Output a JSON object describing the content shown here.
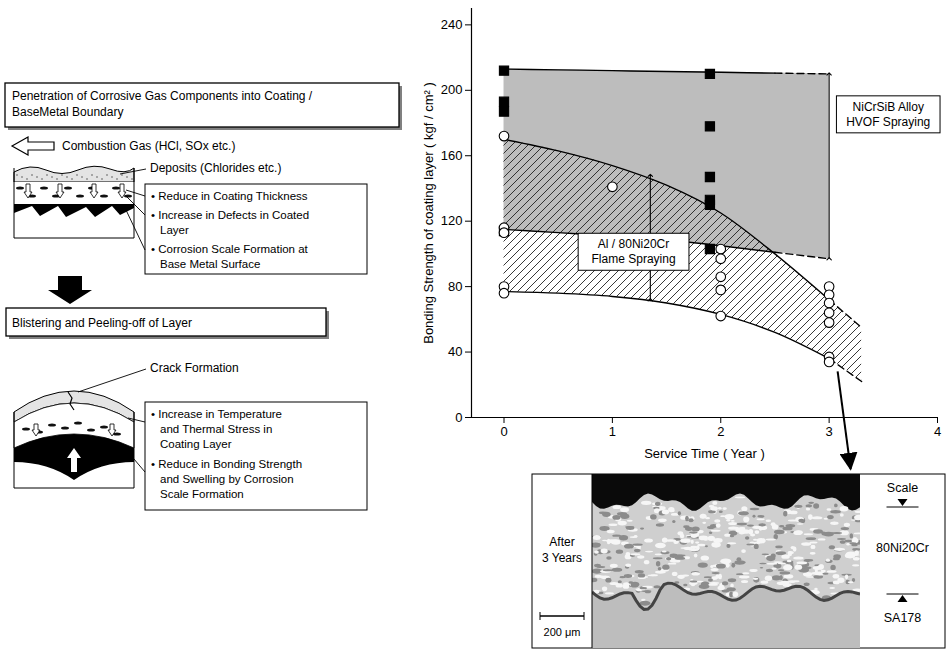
{
  "diagram": {
    "stage1": {
      "title_lines": [
        "Penetration of Corrosive Gas Components into Coating /",
        "BaseMetal Boundary"
      ],
      "gas_label": "Combustion Gas (HCl, SOx etc.)",
      "deposit_label": "Deposits (Chlorides etc.)",
      "effects": [
        [
          "• Reduce in Coating Thickness"
        ],
        [
          "• Increase in Defects in Coated",
          "Layer"
        ],
        [
          "• Corrosion Scale Formation at",
          "Base Metal Surface"
        ]
      ]
    },
    "stage2": {
      "title_lines": [
        "Blistering and Peeling-off of Layer"
      ],
      "crack_label": "Crack Formation",
      "effects": [
        [
          "• Increase in Temperature",
          "and Thermal Stress in",
          "Coating Layer"
        ],
        [
          "• Reduce in Bonding Strength",
          "and Swelling by Corrosion",
          "Scale Formation"
        ]
      ]
    }
  },
  "chart_data": {
    "type": "scatter",
    "xlabel": "Service Time ( Year )",
    "ylabel": "Bonding Strength of coating layer ( kgf / cm² )",
    "xlim": [
      -0.3,
      4
    ],
    "xticks": [
      0,
      1,
      2,
      3,
      4
    ],
    "ylim": [
      0,
      250
    ],
    "yticks": [
      0,
      40,
      80,
      120,
      160,
      200,
      240
    ],
    "grid": false,
    "series": [
      {
        "label_lines": [
          "NiCrSiB Alloy",
          "HVOF Spraying"
        ],
        "color": "#000000",
        "marker": "square",
        "x": [
          0,
          0,
          0,
          0,
          1.9,
          1.9,
          1.9,
          1.9,
          1.9,
          1.9
        ],
        "values": [
          212,
          193,
          187,
          114,
          210,
          178,
          147,
          133,
          130,
          103
        ],
        "band": {
          "x": [
            0,
            0.5,
            1,
            1.5,
            2,
            2.5,
            3
          ],
          "upper": [
            213,
            212.5,
            212,
            211.5,
            211,
            210.5,
            210
          ],
          "lower": [
            115,
            113,
            111,
            108.5,
            105,
            101,
            97
          ],
          "dashed_from": 2.5
        },
        "arrow": {
          "x": 3,
          "y1": 97,
          "y2": 210
        }
      },
      {
        "label_lines": [
          "Al / 80Ni20Cr",
          "Flame Spraying"
        ],
        "color": "#000000",
        "marker": "open_circle",
        "x": [
          0,
          0,
          0,
          0,
          0,
          1,
          2,
          2,
          2,
          2,
          2,
          3,
          3,
          3,
          3,
          3,
          3,
          3
        ],
        "values": [
          172,
          116,
          113,
          80,
          76,
          141,
          103,
          97,
          86,
          78,
          62,
          80,
          75,
          70,
          64,
          58,
          37,
          34
        ],
        "band": {
          "x": [
            0,
            0.5,
            1,
            1.5,
            2,
            2.5,
            3,
            3.3
          ],
          "upper": [
            170,
            163,
            154,
            142,
            125,
            100,
            72,
            55
          ],
          "lower": [
            77,
            76,
            74,
            70,
            63,
            52,
            36,
            22
          ],
          "dashed_from": 3
        },
        "arrow": {
          "x": 1.35,
          "y1": 72,
          "y2": 148
        }
      }
    ]
  },
  "inset": {
    "title_lines": [
      "After",
      "3 Years"
    ],
    "layers": [
      "Scale",
      "80Ni20Cr",
      "SA178"
    ],
    "scale_bar": "200 μm"
  }
}
